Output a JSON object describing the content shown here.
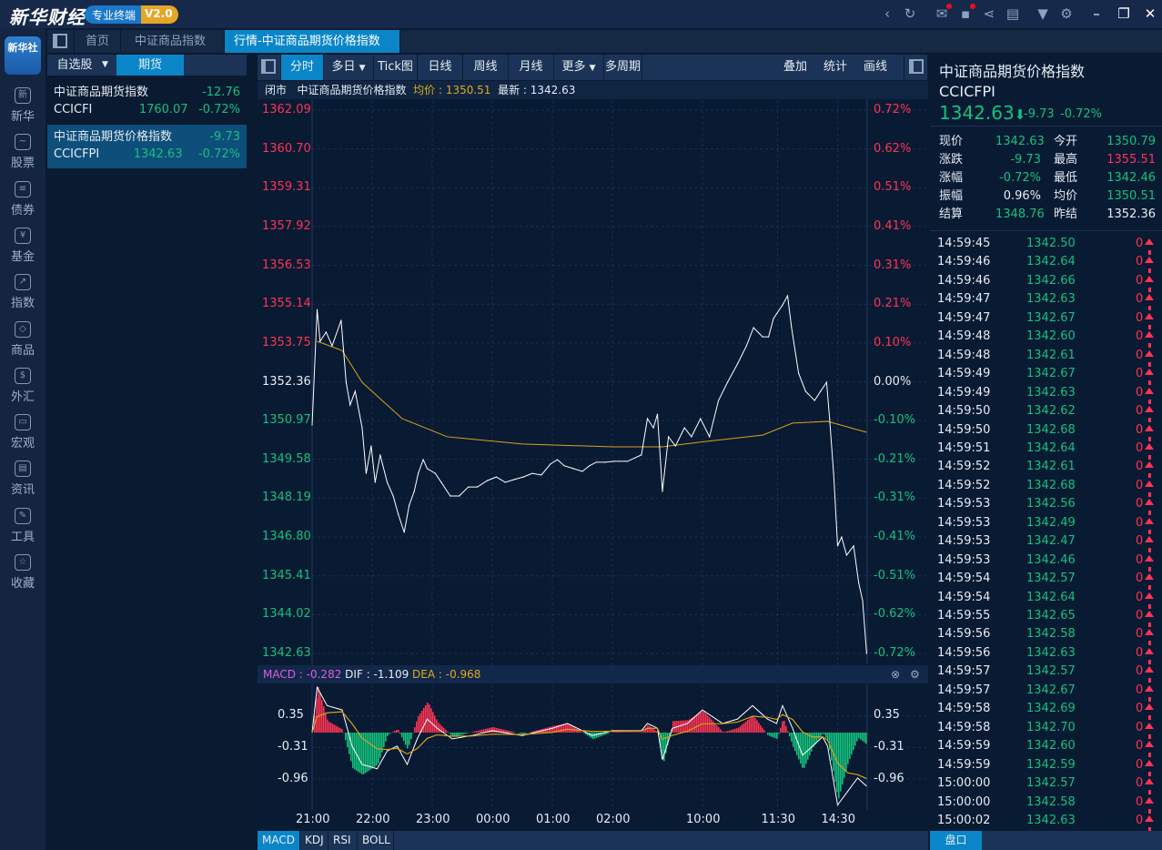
{
  "app": {
    "logo": "新华财经",
    "badge_label": "专业终端",
    "badge_version": "V2.0"
  },
  "window_icons": [
    "back-icon",
    "refresh-icon",
    "mail-icon",
    "message-icon",
    "share-icon",
    "notes-icon",
    "skin-icon",
    "settings-icon",
    "minimize-icon",
    "restore-icon",
    "close-icon"
  ],
  "nav": {
    "logo_text": "新华社",
    "items": [
      {
        "label": "新华",
        "icon": "新"
      },
      {
        "label": "股票",
        "icon": "~"
      },
      {
        "label": "债券",
        "icon": "≡"
      },
      {
        "label": "基金",
        "icon": "¥"
      },
      {
        "label": "指数",
        "icon": "↗"
      },
      {
        "label": "商品",
        "icon": "◇"
      },
      {
        "label": "外汇",
        "icon": "$"
      },
      {
        "label": "宏观",
        "icon": "▭"
      },
      {
        "label": "资讯",
        "icon": "▤"
      },
      {
        "label": "工具",
        "icon": "✎"
      },
      {
        "label": "收藏",
        "icon": "☆"
      }
    ]
  },
  "tabs": [
    {
      "label": "首页"
    },
    {
      "label": "中证商品指数"
    },
    {
      "label": "行情-中证商品期货价格指数",
      "close": "×"
    }
  ],
  "watchlist": {
    "tabs": [
      "自选股",
      "期货"
    ],
    "items": [
      {
        "name": "中证商品期货指数",
        "change": "-12.76",
        "code": "CCICFI",
        "price": "1760.07",
        "pct": "-0.72%"
      },
      {
        "name": "中证商品期货价格指数",
        "change": "-9.73",
        "code": "CCICFPI",
        "price": "1342.63",
        "pct": "-0.72%"
      }
    ]
  },
  "toolbar": {
    "buttons": [
      "分时",
      "多日",
      "Tick图",
      "日线",
      "周线",
      "月线",
      "更多",
      "多周期"
    ],
    "right": [
      "叠加",
      "统计",
      "画线"
    ]
  },
  "info": {
    "status": "闭市",
    "name": "中证商品期货价格指数",
    "avg_label": "均价 : ",
    "avg": "1350.51",
    "last_label": "最新 : ",
    "last": "1342.63"
  },
  "colors": {
    "up": "#ff3352",
    "down": "#13c27d",
    "avg": "#d9a21b",
    "price": "#ffffff",
    "accent": "#0a86c8"
  },
  "chart_data": {
    "type": "line",
    "price_ticks": [
      "1362.09",
      "1360.70",
      "1359.31",
      "1357.92",
      "1356.53",
      "1355.14",
      "1353.75",
      "1352.36",
      "1350.97",
      "1349.58",
      "1348.19",
      "1346.80",
      "1345.41",
      "1344.02",
      "1342.63"
    ],
    "pct_ticks": [
      "0.72%",
      "0.62%",
      "0.51%",
      "0.41%",
      "0.31%",
      "0.21%",
      "0.10%",
      "0.00%",
      "-0.10%",
      "-0.21%",
      "-0.31%",
      "-0.41%",
      "-0.51%",
      "-0.62%",
      "-0.72%"
    ],
    "ylim": [
      1342.63,
      1362.09
    ],
    "prev_close": 1352.36,
    "time_ticks": [
      "21:00",
      "22:00",
      "23:00",
      "00:00",
      "01:00",
      "02:00",
      "10:00",
      "11:30",
      "14:30"
    ],
    "price": [
      [
        "21:00",
        1350.81
      ],
      [
        "21:05",
        1354.95
      ],
      [
        "21:08",
        1353.81
      ],
      [
        "21:14",
        1354.14
      ],
      [
        "21:20",
        1353.65
      ],
      [
        "21:29",
        1354.56
      ],
      [
        "21:34",
        1352.34
      ],
      [
        "21:38",
        1351.53
      ],
      [
        "21:43",
        1352.02
      ],
      [
        "21:50",
        1350.71
      ],
      [
        "21:54",
        1349.08
      ],
      [
        "21:59",
        1350.06
      ],
      [
        "22:03",
        1348.76
      ],
      [
        "22:08",
        1349.74
      ],
      [
        "22:15",
        1348.76
      ],
      [
        "22:21",
        1348.27
      ],
      [
        "22:26",
        1347.62
      ],
      [
        "22:32",
        1346.97
      ],
      [
        "22:37",
        1347.94
      ],
      [
        "22:42",
        1348.43
      ],
      [
        "22:46",
        1349.08
      ],
      [
        "22:51",
        1349.57
      ],
      [
        "22:55",
        1349.25
      ],
      [
        "23:03",
        1349.08
      ],
      [
        "23:09",
        1348.76
      ],
      [
        "23:18",
        1348.27
      ],
      [
        "23:27",
        1348.27
      ],
      [
        "23:36",
        1348.59
      ],
      [
        "23:45",
        1348.59
      ],
      [
        "23:55",
        1348.82
      ],
      [
        "00:04",
        1348.95
      ],
      [
        "00:13",
        1348.76
      ],
      [
        "00:22",
        1348.86
      ],
      [
        "00:31",
        1348.95
      ],
      [
        "00:40",
        1349.08
      ],
      [
        "00:49",
        1349.02
      ],
      [
        "00:58",
        1349.41
      ],
      [
        "01:05",
        1349.57
      ],
      [
        "01:12",
        1349.35
      ],
      [
        "01:21",
        1349.25
      ],
      [
        "01:30",
        1349.15
      ],
      [
        "01:37",
        1349.35
      ],
      [
        "01:44",
        1349.48
      ],
      [
        "01:53",
        1349.48
      ],
      [
        "02:02",
        1349.51
      ],
      [
        "02:15",
        1349.51
      ],
      [
        "02:29",
        1349.74
      ],
      [
        "09:05",
        1351.04
      ],
      [
        "09:11",
        1350.71
      ],
      [
        "09:15",
        1351.2
      ],
      [
        "09:20",
        1348.43
      ],
      [
        "09:26",
        1350.39
      ],
      [
        "09:33",
        1350.06
      ],
      [
        "09:42",
        1350.71
      ],
      [
        "09:49",
        1350.39
      ],
      [
        "09:58",
        1351.04
      ],
      [
        "10:07",
        1350.39
      ],
      [
        "10:31",
        1351.69
      ],
      [
        "10:40",
        1352.34
      ],
      [
        "10:50",
        1353.0
      ],
      [
        "10:59",
        1353.65
      ],
      [
        "11:06",
        1354.3
      ],
      [
        "11:15",
        1353.97
      ],
      [
        "11:21",
        1353.97
      ],
      [
        "11:26",
        1354.63
      ],
      [
        "11:29",
        1354.79
      ],
      [
        "13:35",
        1355.11
      ],
      [
        "13:40",
        1355.44
      ],
      [
        "13:44",
        1354.3
      ],
      [
        "13:51",
        1352.67
      ],
      [
        "13:58",
        1352.02
      ],
      [
        "14:07",
        1351.69
      ],
      [
        "14:13",
        1352.02
      ],
      [
        "14:19",
        1352.34
      ],
      [
        "14:22",
        1351.04
      ],
      [
        "14:26",
        1349.08
      ],
      [
        "14:30",
        1346.48
      ],
      [
        "14:34",
        1346.8
      ],
      [
        "14:39",
        1346.15
      ],
      [
        "14:46",
        1346.48
      ],
      [
        "14:51",
        1345.17
      ],
      [
        "14:55",
        1344.52
      ],
      [
        "14:59",
        1342.63
      ]
    ],
    "avg": [
      [
        "21:05",
        1353.81
      ],
      [
        "21:30",
        1353.48
      ],
      [
        "21:50",
        1352.34
      ],
      [
        "22:30",
        1351.04
      ],
      [
        "23:15",
        1350.39
      ],
      [
        "00:30",
        1350.13
      ],
      [
        "02:00",
        1350.03
      ],
      [
        "09:20",
        1350.03
      ],
      [
        "10:05",
        1350.23
      ],
      [
        "11:15",
        1350.45
      ],
      [
        "13:45",
        1350.88
      ],
      [
        "14:20",
        1350.94
      ],
      [
        "14:59",
        1350.55
      ]
    ]
  },
  "macd": {
    "header": {
      "macd_label": "MACD : ",
      "macd": "-0.282",
      "dif_label": "DIF : ",
      "dif": "-1.109",
      "dea_label": "DEA : ",
      "dea": "-0.968"
    },
    "ticks": [
      "0.35",
      "-0.31",
      "-0.96"
    ],
    "dif": [
      [
        "21:00",
        0
      ],
      [
        "21:05",
        0.94
      ],
      [
        "21:15",
        0.56
      ],
      [
        "21:30",
        0.47
      ],
      [
        "21:40",
        -0.28
      ],
      [
        "21:50",
        -0.66
      ],
      [
        "22:05",
        -0.75
      ],
      [
        "22:15",
        -0.38
      ],
      [
        "22:25",
        -0.28
      ],
      [
        "22:35",
        -0.66
      ],
      [
        "22:45",
        -0.13
      ],
      [
        "22:55",
        0.28
      ],
      [
        "23:05",
        0.09
      ],
      [
        "23:20",
        -0.13
      ],
      [
        "23:40",
        -0.06
      ],
      [
        "00:00",
        0.04
      ],
      [
        "00:30",
        -0.06
      ],
      [
        "01:00",
        0.09
      ],
      [
        "01:15",
        0.19
      ],
      [
        "01:40",
        -0.06
      ],
      [
        "02:00",
        0.04
      ],
      [
        "02:29",
        0.04
      ],
      [
        "09:05",
        0.19
      ],
      [
        "09:15",
        0.09
      ],
      [
        "09:20",
        -0.56
      ],
      [
        "09:30",
        0.09
      ],
      [
        "09:45",
        0.19
      ],
      [
        "10:00",
        0.47
      ],
      [
        "10:35",
        0.19
      ],
      [
        "10:50",
        0.28
      ],
      [
        "11:05",
        0.56
      ],
      [
        "11:20",
        0.28
      ],
      [
        "11:29",
        0.19
      ],
      [
        "13:35",
        0.56
      ],
      [
        "13:45",
        0.09
      ],
      [
        "13:55",
        -0.47
      ],
      [
        "14:05",
        -0.28
      ],
      [
        "14:15",
        -0.09
      ],
      [
        "14:20",
        -0.28
      ],
      [
        "14:30",
        -1.5
      ],
      [
        "14:40",
        -1.22
      ],
      [
        "14:50",
        -0.94
      ],
      [
        "14:59",
        -1.11
      ]
    ],
    "tabs": [
      "MACD",
      "KDJ",
      "RSI",
      "BOLL"
    ]
  },
  "quote": {
    "name": "中证商品期货价格指数",
    "code": "CCICFPI",
    "price": "1342.63",
    "change": "-9.73",
    "pct": "-0.72%",
    "stats": [
      [
        "现价",
        "1342.63",
        "g",
        "今开",
        "1350.79",
        "g"
      ],
      [
        "涨跌",
        "-9.73",
        "g",
        "最高",
        "1355.51",
        "rd"
      ],
      [
        "涨幅",
        "-0.72%",
        "g",
        "最低",
        "1342.46",
        "g"
      ],
      [
        "振幅",
        "0.96%",
        "w",
        "均价",
        "1350.51",
        "g"
      ],
      [
        "结算",
        "1348.76",
        "g",
        "昨结",
        "1352.36",
        "w"
      ]
    ],
    "ticks": [
      [
        "14:59:45",
        "1342.50",
        "0"
      ],
      [
        "14:59:46",
        "1342.64",
        "0"
      ],
      [
        "14:59:46",
        "1342.66",
        "0"
      ],
      [
        "14:59:47",
        "1342.63",
        "0"
      ],
      [
        "14:59:47",
        "1342.67",
        "0"
      ],
      [
        "14:59:48",
        "1342.60",
        "0"
      ],
      [
        "14:59:48",
        "1342.61",
        "0"
      ],
      [
        "14:59:49",
        "1342.67",
        "0"
      ],
      [
        "14:59:49",
        "1342.63",
        "0"
      ],
      [
        "14:59:50",
        "1342.62",
        "0"
      ],
      [
        "14:59:50",
        "1342.68",
        "0"
      ],
      [
        "14:59:51",
        "1342.64",
        "0"
      ],
      [
        "14:59:52",
        "1342.61",
        "0"
      ],
      [
        "14:59:52",
        "1342.68",
        "0"
      ],
      [
        "14:59:53",
        "1342.56",
        "0"
      ],
      [
        "14:59:53",
        "1342.49",
        "0"
      ],
      [
        "14:59:53",
        "1342.47",
        "0"
      ],
      [
        "14:59:53",
        "1342.46",
        "0"
      ],
      [
        "14:59:54",
        "1342.57",
        "0"
      ],
      [
        "14:59:54",
        "1342.64",
        "0"
      ],
      [
        "14:59:55",
        "1342.65",
        "0"
      ],
      [
        "14:59:56",
        "1342.58",
        "0"
      ],
      [
        "14:59:56",
        "1342.63",
        "0"
      ],
      [
        "14:59:57",
        "1342.57",
        "0"
      ],
      [
        "14:59:57",
        "1342.67",
        "0"
      ],
      [
        "14:59:58",
        "1342.69",
        "0"
      ],
      [
        "14:59:58",
        "1342.70",
        "0"
      ],
      [
        "14:59:59",
        "1342.60",
        "0"
      ],
      [
        "14:59:59",
        "1342.59",
        "0"
      ],
      [
        "15:00:00",
        "1342.57",
        "0"
      ],
      [
        "15:00:00",
        "1342.58",
        "0"
      ],
      [
        "15:00:02",
        "1342.63",
        "0"
      ]
    ],
    "bottom_tab": "盘口"
  }
}
